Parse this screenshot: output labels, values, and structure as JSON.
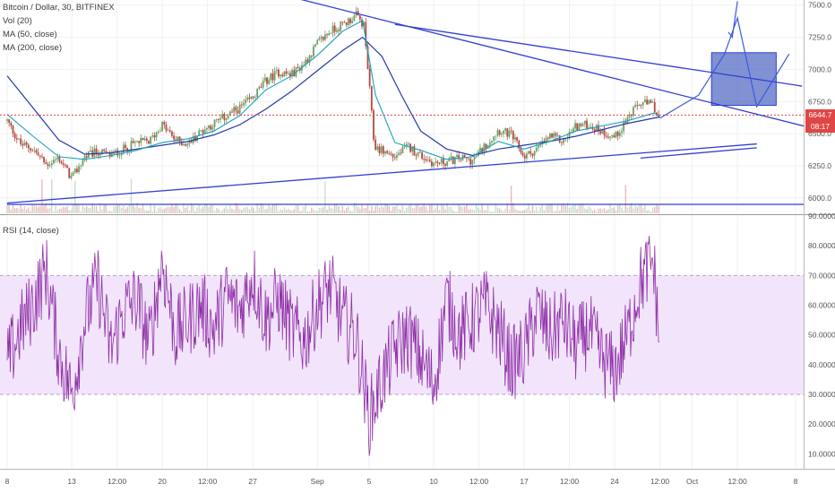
{
  "legend": {
    "symbol": "Bitcoin / Dollar, 30, BITFINEX",
    "vol": "Vol (20)",
    "ma50": "MA (50, close)",
    "ma200": "MA (200, close)",
    "rsi": "RSI (14, close)"
  },
  "price_badges": {
    "last": "6644.7",
    "countdown": "08:17"
  },
  "colors": {
    "trendline": "#2f3fd1",
    "zone_fill": "#4a63c2",
    "candle_up": "#6d9f64",
    "candle_down": "#b2493f",
    "ma50": "#17a2b8",
    "ma200": "#2639a6",
    "rsi_line": "#8f2fa6",
    "rsi_band": "#f1e4fb",
    "price_line": "#e04646"
  },
  "chart_data": [
    {
      "type": "candlestick",
      "title": "Bitcoin / Dollar, 30, BITFINEX",
      "yticks": [
        "7500.0",
        "7250.0",
        "7000.0",
        "6750.0",
        "6500.0",
        "6250.0",
        "6000.0"
      ],
      "yvalues": [
        7500,
        7250,
        7000,
        6750,
        6500,
        6250,
        6000
      ],
      "ylim": [
        5880,
        7540
      ],
      "xticks": [
        "8",
        "13",
        "12:00",
        "20",
        "12:00",
        "27",
        "Sep",
        "5",
        "10",
        "12:00",
        "17",
        "12:00",
        "24",
        "12:00",
        "Oct",
        "12:00",
        "8"
      ],
      "xdays": [
        8,
        13,
        16.5,
        20,
        23.5,
        27,
        32,
        36,
        41,
        44.5,
        48,
        51.5,
        55,
        58.5,
        61,
        64.5,
        69
      ],
      "price_path": [
        [
          8,
          6600
        ],
        [
          9,
          6420
        ],
        [
          10,
          6380
        ],
        [
          11,
          6260
        ],
        [
          12,
          6310
        ],
        [
          13,
          6150
        ],
        [
          14,
          6320
        ],
        [
          15,
          6360
        ],
        [
          16,
          6330
        ],
        [
          17,
          6380
        ],
        [
          18,
          6430
        ],
        [
          19,
          6440
        ],
        [
          20,
          6570
        ],
        [
          21,
          6450
        ],
        [
          22,
          6420
        ],
        [
          23,
          6520
        ],
        [
          24,
          6580
        ],
        [
          25,
          6640
        ],
        [
          26,
          6700
        ],
        [
          27,
          6780
        ],
        [
          28,
          6910
        ],
        [
          29,
          6980
        ],
        [
          30,
          6960
        ],
        [
          31,
          7050
        ],
        [
          32,
          7200
        ],
        [
          33,
          7300
        ],
        [
          34,
          7350
        ],
        [
          35,
          7420
        ],
        [
          35.6,
          7340
        ],
        [
          36,
          6900
        ],
        [
          36.4,
          6400
        ],
        [
          37,
          6370
        ],
        [
          38,
          6320
        ],
        [
          39,
          6400
        ],
        [
          40,
          6330
        ],
        [
          41,
          6270
        ],
        [
          42,
          6280
        ],
        [
          43,
          6310
        ],
        [
          44,
          6290
        ],
        [
          45,
          6410
        ],
        [
          46,
          6530
        ],
        [
          47,
          6490
        ],
        [
          48,
          6320
        ],
        [
          49,
          6380
        ],
        [
          50,
          6480
        ],
        [
          51,
          6440
        ],
        [
          52,
          6560
        ],
        [
          53,
          6570
        ],
        [
          54,
          6520
        ],
        [
          55,
          6470
        ],
        [
          56,
          6620
        ],
        [
          57,
          6740
        ],
        [
          58,
          6720
        ],
        [
          58.5,
          6600
        ]
      ],
      "ma50_path": [
        [
          8,
          6650
        ],
        [
          10,
          6480
        ],
        [
          12,
          6320
        ],
        [
          14,
          6300
        ],
        [
          16,
          6330
        ],
        [
          18,
          6370
        ],
        [
          20,
          6430
        ],
        [
          22,
          6460
        ],
        [
          24,
          6520
        ],
        [
          26,
          6640
        ],
        [
          28,
          6840
        ],
        [
          30,
          6950
        ],
        [
          32,
          7110
        ],
        [
          34,
          7300
        ],
        [
          35.5,
          7380
        ],
        [
          36.5,
          6800
        ],
        [
          38,
          6430
        ],
        [
          40,
          6370
        ],
        [
          42,
          6300
        ],
        [
          44,
          6320
        ],
        [
          46,
          6440
        ],
        [
          48,
          6380
        ],
        [
          50,
          6440
        ],
        [
          52,
          6520
        ],
        [
          54,
          6560
        ],
        [
          56,
          6600
        ],
        [
          58,
          6660
        ],
        [
          58.5,
          6640
        ]
      ],
      "ma200_path": [
        [
          8,
          6950
        ],
        [
          10,
          6700
        ],
        [
          12,
          6450
        ],
        [
          14,
          6340
        ],
        [
          16,
          6350
        ],
        [
          18,
          6380
        ],
        [
          20,
          6410
        ],
        [
          22,
          6440
        ],
        [
          24,
          6490
        ],
        [
          26,
          6570
        ],
        [
          28,
          6690
        ],
        [
          30,
          6830
        ],
        [
          32,
          6990
        ],
        [
          34,
          7150
        ],
        [
          35.5,
          7250
        ],
        [
          37,
          7100
        ],
        [
          38.5,
          6800
        ],
        [
          40,
          6520
        ],
        [
          42,
          6380
        ],
        [
          44,
          6330
        ],
        [
          46,
          6380
        ],
        [
          48,
          6410
        ],
        [
          50,
          6440
        ],
        [
          52,
          6480
        ],
        [
          54,
          6530
        ],
        [
          56,
          6580
        ],
        [
          58,
          6620
        ],
        [
          58.5,
          6630
        ]
      ],
      "last_price": 6644.7,
      "zone": {
        "x": [
          62.5,
          67.5
        ],
        "y": [
          6720,
          7130
        ]
      },
      "trendlines": [
        [
          [
            30.5,
            7550
          ],
          [
            70,
            6550
          ]
        ],
        [
          [
            38,
            7350
          ],
          [
            69.5,
            6870
          ]
        ],
        [
          [
            8,
            5960
          ],
          [
            66,
            6420
          ]
        ],
        [
          [
            8,
            5950
          ],
          [
            70,
            5950
          ]
        ],
        [
          [
            57,
            6310
          ],
          [
            66,
            6390
          ]
        ]
      ],
      "projection": [
        [
          58.5,
          6620
        ],
        [
          61.5,
          6800
        ],
        [
          63.5,
          7120
        ],
        [
          64.5,
          7400
        ],
        [
          66,
          6710
        ],
        [
          68.5,
          7120
        ]
      ],
      "arrow_mark": [
        [
          63.8,
          7290
        ],
        [
          64.1,
          7250
        ],
        [
          64.5,
          7530
        ]
      ]
    },
    {
      "type": "line",
      "title": "RSI (14, close)",
      "yticks": [
        "90.0000",
        "80.0000",
        "70.0000",
        "60.0000",
        "50.0000",
        "40.0000",
        "30.0000",
        "20.0000",
        "10.0000"
      ],
      "yvalues": [
        90,
        80,
        70,
        60,
        50,
        40,
        30,
        20,
        10
      ],
      "ylim": [
        5,
        90
      ],
      "band": [
        30,
        70
      ],
      "x_range": [
        8,
        58.5
      ],
      "anchor_values": [
        [
          8,
          40
        ],
        [
          9,
          52
        ],
        [
          10,
          60
        ],
        [
          11,
          72
        ],
        [
          12,
          44
        ],
        [
          13,
          30
        ],
        [
          14,
          55
        ],
        [
          15,
          68
        ],
        [
          16,
          45
        ],
        [
          17,
          58
        ],
        [
          18,
          62
        ],
        [
          19,
          47
        ],
        [
          20,
          75
        ],
        [
          21,
          50
        ],
        [
          22,
          55
        ],
        [
          23,
          60
        ],
        [
          24,
          52
        ],
        [
          25,
          63
        ],
        [
          26,
          58
        ],
        [
          27,
          70
        ],
        [
          28,
          55
        ],
        [
          29,
          62
        ],
        [
          30,
          52
        ],
        [
          31,
          48
        ],
        [
          32,
          60
        ],
        [
          33,
          66
        ],
        [
          34,
          55
        ],
        [
          35,
          50
        ],
        [
          36,
          22
        ],
        [
          37,
          35
        ],
        [
          38,
          45
        ],
        [
          39,
          50
        ],
        [
          40,
          42
        ],
        [
          41,
          33
        ],
        [
          42,
          62
        ],
        [
          43,
          50
        ],
        [
          44,
          55
        ],
        [
          45,
          60
        ],
        [
          46,
          52
        ],
        [
          47,
          40
        ],
        [
          48,
          44
        ],
        [
          49,
          58
        ],
        [
          50,
          50
        ],
        [
          51,
          55
        ],
        [
          52,
          46
        ],
        [
          53,
          52
        ],
        [
          54,
          42
        ],
        [
          55,
          38
        ],
        [
          56,
          50
        ],
        [
          57,
          68
        ],
        [
          58,
          75
        ],
        [
          58.5,
          45
        ]
      ]
    }
  ]
}
